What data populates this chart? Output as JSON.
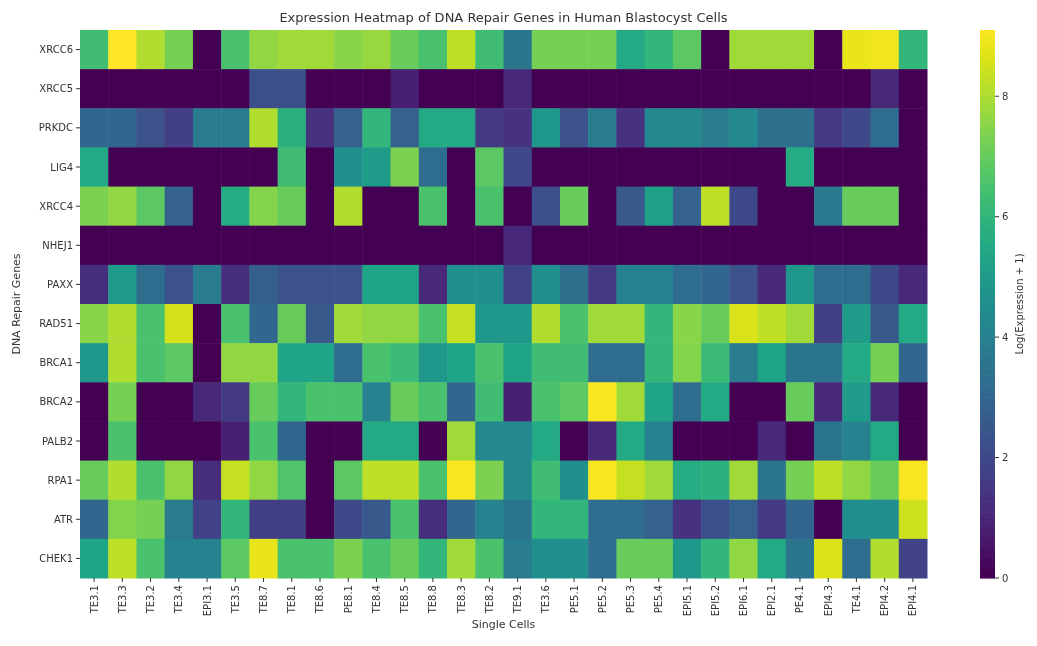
{
  "chart_data": {
    "type": "heatmap",
    "title": "Expression Heatmap of DNA Repair Genes in Human Blastocyst Cells",
    "xlabel": "Single Cells",
    "ylabel": "DNA Repair Genes",
    "clabel": "Log(Expression + 1)",
    "categories": [
      "TE3.1",
      "TE3.3",
      "TE3.2",
      "TE3.4",
      "EPI3.1",
      "TE3.5",
      "TE8.7",
      "TE8.1",
      "TE8.6",
      "PE8.1",
      "TE8.4",
      "TE8.5",
      "TE8.8",
      "TE8.3",
      "TE8.2",
      "TE9.1",
      "TE3.6",
      "PE5.1",
      "PE5.2",
      "PE5.3",
      "PE5.4",
      "EPI5.1",
      "EPI5.2",
      "EPI6.1",
      "EPI2.1",
      "PE4.1",
      "EPI4.3",
      "TE4.1",
      "EPI4.2",
      "EPI4.1"
    ],
    "y_categories": [
      "XRCC6",
      "XRCC5",
      "PRKDC",
      "LIG4",
      "XRCC4",
      "NHEJ1",
      "PAXX",
      "RAD51",
      "BRCA1",
      "BRCA2",
      "PALB2",
      "RPA1",
      "ATR",
      "CHEK1"
    ],
    "cells": [
      [
        6.3,
        9.1,
        8,
        7.2,
        0,
        6.5,
        7.6,
        7.8,
        7.8,
        7.5,
        7.7,
        7,
        6.5,
        8.2,
        6.3,
        3.5,
        7.2,
        7.2,
        7.2,
        5.5,
        6,
        6.8,
        0,
        7.8,
        7.8,
        7.8,
        0,
        8.8,
        8.9,
        6
      ],
      [
        0,
        0,
        0,
        0,
        0,
        0,
        2.2,
        2.2,
        0,
        0,
        0,
        0.8,
        0,
        0,
        0,
        1,
        0,
        0,
        0,
        0,
        0,
        0,
        0,
        0,
        0,
        0,
        0,
        0,
        1,
        0
      ],
      [
        3,
        3,
        2.3,
        1.7,
        3.8,
        3.8,
        8,
        5.8,
        1.3,
        2.8,
        6,
        2.8,
        5.5,
        5.5,
        1.5,
        1.3,
        4.8,
        2.3,
        3.8,
        1.3,
        4.3,
        4.3,
        3.8,
        4.3,
        3.3,
        3.3,
        1.5,
        2,
        3.2,
        0
      ],
      [
        5.5,
        0,
        0,
        0,
        0,
        0,
        0,
        6.3,
        0,
        4.5,
        5,
        7.3,
        3.2,
        0,
        6.8,
        2,
        0,
        0,
        0,
        0,
        0,
        0,
        0,
        0,
        0,
        5.6,
        0,
        0,
        0,
        0
      ],
      [
        7.3,
        7.6,
        6.8,
        2.8,
        0,
        5.6,
        7.4,
        7,
        0,
        8,
        0,
        0,
        6.5,
        0,
        6.5,
        0,
        2.2,
        7,
        0,
        2.5,
        5.2,
        2.8,
        8.2,
        2,
        0,
        0,
        3.7,
        7,
        7,
        0
      ],
      [
        0,
        0,
        0,
        0,
        0,
        0,
        0,
        0,
        0,
        0,
        0,
        0,
        0,
        0,
        0,
        1,
        0,
        0,
        0,
        0,
        0,
        0,
        0,
        0,
        0,
        0,
        0,
        0,
        0,
        0
      ],
      [
        1.2,
        5,
        3.2,
        2.3,
        3.8,
        1.2,
        2.7,
        2.3,
        2.3,
        2.3,
        5.3,
        5.3,
        1,
        4.5,
        4.5,
        1.8,
        4.5,
        3.3,
        1.5,
        4,
        4,
        3.2,
        3,
        2.3,
        1,
        4.8,
        3.2,
        3.2,
        2,
        1
      ],
      [
        7.5,
        8,
        6.5,
        8.5,
        0,
        6.5,
        3,
        7,
        2.5,
        7.8,
        7.6,
        7.6,
        6.5,
        8.3,
        4.8,
        4.8,
        8,
        6.5,
        7.8,
        7.8,
        6,
        7.5,
        7,
        8.6,
        8.2,
        7.8,
        1.7,
        5,
        2.5,
        5.5
      ],
      [
        4.8,
        8,
        6.5,
        6.8,
        0,
        7.6,
        7.6,
        5.3,
        5.3,
        3.2,
        6.5,
        6.2,
        4.8,
        5.3,
        6.5,
        5.3,
        6.3,
        6.3,
        3.2,
        3.2,
        6,
        7.4,
        6.2,
        3.8,
        5.3,
        3.5,
        3.5,
        5.5,
        7.2,
        3
      ],
      [
        0,
        7.2,
        0,
        0,
        1,
        1.5,
        7,
        6,
        6.5,
        6.5,
        4,
        7,
        6.5,
        3,
        6.3,
        0.8,
        6.5,
        6.8,
        9,
        7.8,
        5.3,
        3.2,
        5.5,
        0,
        0,
        7,
        1,
        5,
        1,
        0
      ],
      [
        0,
        6.5,
        0,
        0,
        0,
        0.8,
        6.5,
        3,
        0,
        0,
        5.5,
        5.5,
        0,
        7.8,
        4.3,
        4.3,
        5.5,
        0,
        1,
        5.5,
        4,
        0,
        0,
        0,
        1,
        0,
        3.5,
        4,
        5.5,
        0
      ],
      [
        7,
        8,
        6.5,
        7.6,
        1.2,
        8.3,
        7.6,
        6.6,
        0,
        6.8,
        8.2,
        8.2,
        6.5,
        9,
        7.3,
        4.3,
        6.3,
        4.5,
        9,
        8.3,
        7.8,
        5.6,
        5.8,
        7.8,
        3.5,
        7.2,
        8.2,
        7.6,
        7,
        9
      ],
      [
        3,
        7.4,
        7.2,
        3.8,
        1.8,
        6,
        1.7,
        1.7,
        0,
        2,
        2.5,
        6.5,
        1.2,
        3,
        4,
        3.5,
        6,
        6,
        3.2,
        3.2,
        2.8,
        1.3,
        2.2,
        2.8,
        1.5,
        3,
        0,
        4.5,
        4.5,
        8.4
      ],
      [
        5.3,
        8.2,
        6.5,
        4,
        4,
        6.8,
        8.8,
        6.5,
        6.5,
        7.3,
        6.5,
        7,
        6,
        7.8,
        6.5,
        3.8,
        4.5,
        4.5,
        3.2,
        7,
        7,
        4.8,
        6,
        7.6,
        5.5,
        3.5,
        8.6,
        3.2,
        8,
        1.8
      ]
    ],
    "clim": [
      0,
      9.1
    ],
    "cticks": [
      0,
      2,
      4,
      6,
      8
    ]
  }
}
